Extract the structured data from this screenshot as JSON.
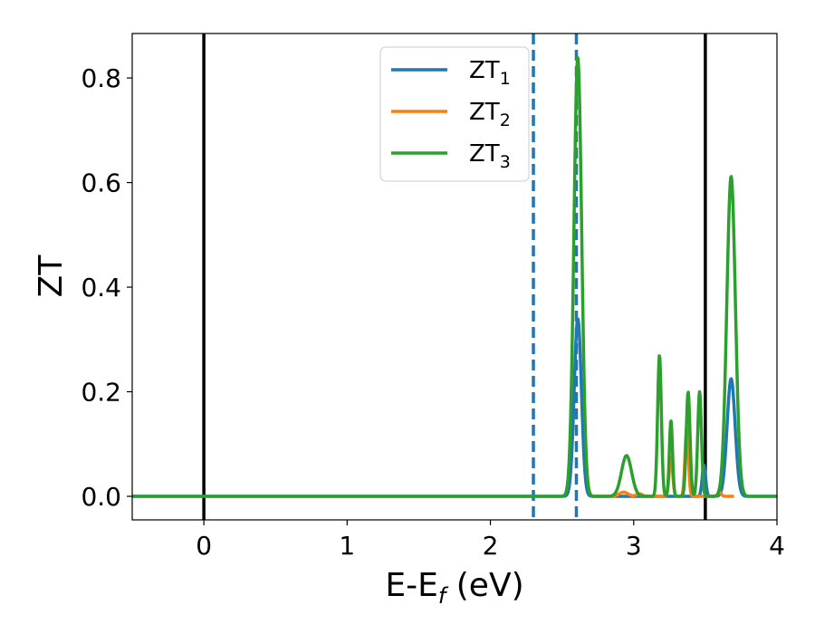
{
  "chart_data": {
    "type": "line",
    "title": "",
    "xlabel": {
      "base": "E-E",
      "sub": "f",
      "suffix": " (eV)"
    },
    "ylabel": "ZT",
    "xlim": [
      -0.5,
      4.0
    ],
    "ylim": [
      -0.045,
      0.885
    ],
    "xticks": [
      0,
      1,
      2,
      3,
      4
    ],
    "xtick_labels": [
      "0",
      "1",
      "2",
      "3",
      "4"
    ],
    "yticks": [
      0.0,
      0.2,
      0.4,
      0.6,
      0.8
    ],
    "ytick_labels": [
      "0.0",
      "0.2",
      "0.4",
      "0.6",
      "0.8"
    ],
    "grid": false,
    "legend_position": "top-center",
    "vertical_lines": [
      {
        "x": 0.0,
        "style": "solid",
        "color": "#000000"
      },
      {
        "x": 3.5,
        "style": "solid",
        "color": "#000000"
      },
      {
        "x": 2.3,
        "style": "dashed",
        "color": "#1f77b4"
      },
      {
        "x": 2.6,
        "style": "dashed",
        "color": "#1f77b4"
      }
    ],
    "series": [
      {
        "name": "ZT",
        "name_sub": "1",
        "color": "#1f77b4",
        "baseline": [
          -0.5,
          4.0
        ],
        "peaks": [
          {
            "x": 2.61,
            "height": 0.34,
            "width": 0.025
          },
          {
            "x": 3.49,
            "height": 0.06,
            "width": 0.012
          },
          {
            "x": 3.68,
            "height": 0.225,
            "width": 0.028
          }
        ]
      },
      {
        "name": "ZT",
        "name_sub": "2",
        "color": "#ff7f0e",
        "baseline": [
          2.7,
          3.7
        ],
        "peaks": [
          {
            "x": 2.93,
            "height": 0.008,
            "width": 0.03
          },
          {
            "x": 3.04,
            "height": 0.005,
            "width": 0.02
          },
          {
            "x": 3.26,
            "height": 0.075,
            "width": 0.012
          },
          {
            "x": 3.37,
            "height": 0.13,
            "width": 0.012
          },
          {
            "x": 3.6,
            "height": 0.008,
            "width": 0.012
          }
        ]
      },
      {
        "name": "ZT",
        "name_sub": "3",
        "color": "#2ca02c",
        "baseline": [
          -0.5,
          4.0
        ],
        "peaks": [
          {
            "x": 2.61,
            "height": 0.84,
            "width": 0.027
          },
          {
            "x": 2.95,
            "height": 0.078,
            "width": 0.035
          },
          {
            "x": 3.18,
            "height": 0.27,
            "width": 0.013
          },
          {
            "x": 3.26,
            "height": 0.145,
            "width": 0.011
          },
          {
            "x": 3.38,
            "height": 0.2,
            "width": 0.013
          },
          {
            "x": 3.46,
            "height": 0.2,
            "width": 0.013
          },
          {
            "x": 3.68,
            "height": 0.612,
            "width": 0.03
          }
        ]
      }
    ]
  }
}
